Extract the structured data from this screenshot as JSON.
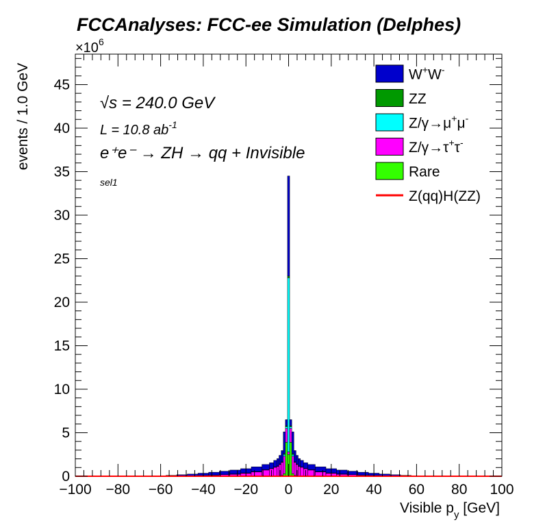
{
  "chart_data": {
    "type": "bar",
    "stacked": true,
    "title": "FCCAnalyses: FCC-ee Simulation (Delphes)",
    "xlabel_main": "Visible p",
    "xlabel_sub": "y",
    "xlabel_unit": " [GeV]",
    "ylabel": "events / 1.0 GeV",
    "y_multiplier": "×10",
    "y_multiplier_exp": "6",
    "xlim": [
      -100,
      100
    ],
    "ylim": [
      0,
      48.5
    ],
    "x_ticks": [
      -100,
      -80,
      -60,
      -40,
      -20,
      0,
      20,
      40,
      60,
      80,
      100
    ],
    "y_ticks": [
      0,
      5,
      10,
      15,
      20,
      25,
      30,
      35,
      40,
      45
    ],
    "annotations": {
      "sqrt_s": "s = 240.0 GeV",
      "lumi": "L = 10.8 ab",
      "lumi_exp": "-1",
      "process": "e⁺e⁻ → ZH → qq + Invisible",
      "selection": "sel1"
    },
    "legend_position": "top-right",
    "x": [
      -60,
      -55,
      -50,
      -45,
      -40,
      -35,
      -30,
      -25,
      -20,
      -15,
      -10,
      -8,
      -6,
      -5,
      -4,
      -3,
      -2,
      -1,
      0,
      1,
      2,
      3,
      4,
      5,
      6,
      8,
      10,
      15,
      20,
      25,
      30,
      35,
      40,
      45,
      50,
      55,
      60
    ],
    "series": [
      {
        "name": "Rare",
        "color": "#33ff00",
        "kind": "fill",
        "values": [
          0,
          0,
          0,
          0,
          0,
          0,
          0,
          0,
          0.01,
          0.01,
          0.02,
          0.02,
          0.03,
          0.04,
          0.05,
          0.1,
          0.3,
          3.9,
          2.5,
          3.9,
          0.3,
          0.1,
          0.05,
          0.04,
          0.03,
          0.02,
          0.02,
          0.01,
          0.01,
          0,
          0,
          0,
          0,
          0,
          0,
          0,
          0
        ]
      },
      {
        "name": "Z/γ→τ⁺τ⁻",
        "color": "#ff00ff",
        "kind": "fill",
        "values": [
          0,
          0,
          0.02,
          0.05,
          0.08,
          0.12,
          0.18,
          0.25,
          0.35,
          0.5,
          0.7,
          0.85,
          1.0,
          1.1,
          1.3,
          1.5,
          2.0,
          1.6,
          0.3,
          1.6,
          2.0,
          1.5,
          1.3,
          1.1,
          1.0,
          0.85,
          0.7,
          0.5,
          0.35,
          0.25,
          0.18,
          0.12,
          0.08,
          0.05,
          0.02,
          0,
          0
        ]
      },
      {
        "name": "Z/γ→μ⁺μ⁻",
        "color": "#00ffff",
        "kind": "fill",
        "values": [
          0,
          0,
          0,
          0,
          0,
          0,
          0,
          0,
          0,
          0,
          0,
          0,
          0,
          0,
          0,
          0,
          0.2,
          0.2,
          20.0,
          0.2,
          0.2,
          0,
          0,
          0,
          0,
          0,
          0,
          0,
          0,
          0,
          0,
          0,
          0,
          0,
          0,
          0,
          0
        ]
      },
      {
        "name": "ZZ",
        "color": "#009900",
        "kind": "fill",
        "values": [
          0,
          0,
          0,
          0,
          0,
          0,
          0,
          0.01,
          0.01,
          0.02,
          0.03,
          0.03,
          0.04,
          0.04,
          0.05,
          0.05,
          0.1,
          0.1,
          0.2,
          0.1,
          0.1,
          0.05,
          0.05,
          0.04,
          0.04,
          0.03,
          0.03,
          0.02,
          0.01,
          0.01,
          0,
          0,
          0,
          0,
          0,
          0,
          0
        ]
      },
      {
        "name": "W⁺W⁻",
        "color": "#0000cc",
        "kind": "fill",
        "values": [
          0.05,
          0.1,
          0.15,
          0.2,
          0.27,
          0.34,
          0.4,
          0.45,
          0.5,
          0.55,
          0.6,
          0.65,
          0.75,
          0.85,
          1.0,
          1.3,
          2.5,
          0.7,
          11.5,
          0.7,
          2.5,
          1.3,
          1.0,
          0.85,
          0.75,
          0.65,
          0.6,
          0.55,
          0.5,
          0.45,
          0.4,
          0.34,
          0.27,
          0.2,
          0.15,
          0.1,
          0.05
        ]
      },
      {
        "name": "Z(qq)H(ZZ)",
        "color": "#ff0000",
        "kind": "line",
        "values": [
          0,
          0,
          0,
          0,
          0,
          0,
          0,
          0,
          0,
          0,
          0,
          0,
          0,
          0,
          0,
          0,
          0,
          0,
          0,
          0,
          0,
          0,
          0,
          0,
          0,
          0,
          0,
          0,
          0,
          0,
          0,
          0,
          0,
          0,
          0,
          0,
          0
        ]
      }
    ],
    "legend": [
      {
        "label": "W",
        "sup1": "+",
        "mid": "W",
        "sup2": "-",
        "color": "#0000cc",
        "kind": "fill"
      },
      {
        "label": "ZZ",
        "color": "#009900",
        "kind": "fill"
      },
      {
        "label": "Z/γ→μ",
        "sup1": "+",
        "mid": "μ",
        "sup2": "-",
        "color": "#00ffff",
        "kind": "fill"
      },
      {
        "label": "Z/γ→τ",
        "sup1": "+",
        "mid": "τ",
        "sup2": "-",
        "color": "#ff00ff",
        "kind": "fill"
      },
      {
        "label": "Rare",
        "color": "#33ff00",
        "kind": "fill"
      },
      {
        "label": "Z(qq)H(ZZ)",
        "color": "#ff0000",
        "kind": "line"
      }
    ]
  }
}
